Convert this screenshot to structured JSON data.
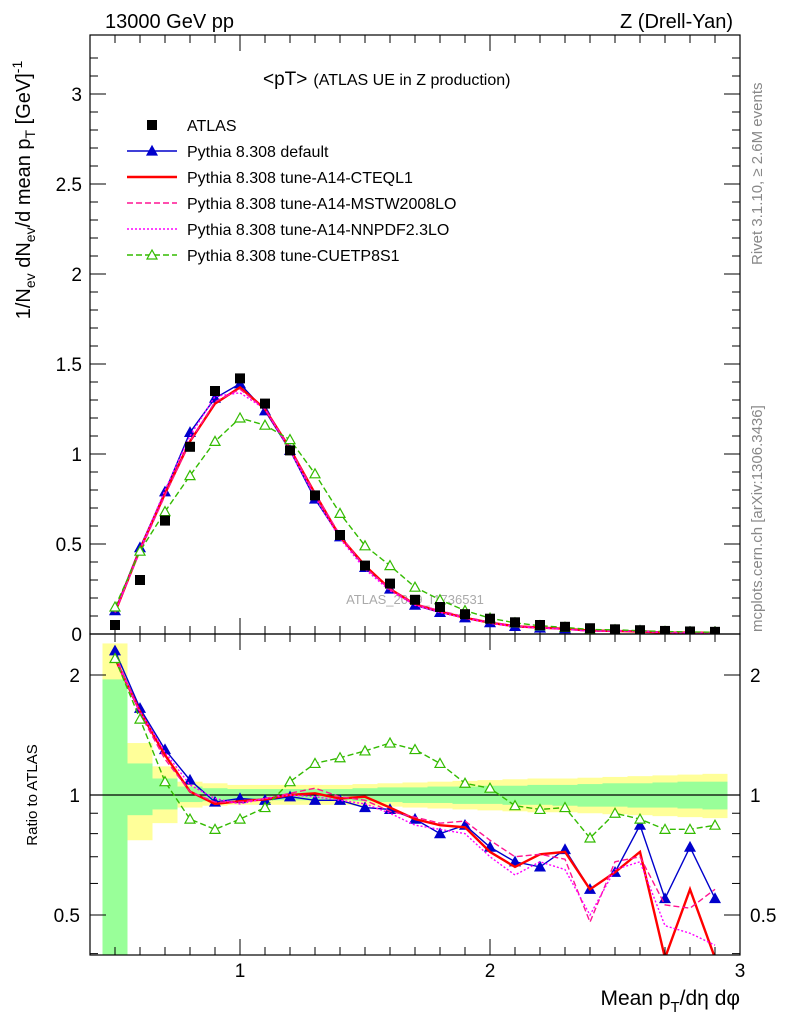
{
  "header": {
    "left": "13000 GeV pp",
    "right": "Z (Drell-Yan)"
  },
  "side_text": {
    "rivet": "Rivet 3.1.10, ≥ 2.6M events",
    "mcplots": "mcplots.cern.ch [arXiv:1306.3436]"
  },
  "watermark": "ATLAS_2019_I1736531",
  "chart_data": [
    {
      "type": "line",
      "title": "<pT>",
      "subtitle": "(ATLAS UE in Z production)",
      "ylabel": "1/N_ev dN_ev/d mean p_T [GeV]^-1",
      "ylim": [
        0,
        3.3
      ],
      "xlim": [
        0.4,
        3.0
      ],
      "yticks": [
        0,
        0.5,
        1,
        1.5,
        2,
        2.5,
        3
      ],
      "legend_position": "top-left",
      "x": [
        0.5,
        0.6,
        0.7,
        0.8,
        0.9,
        1.0,
        1.1,
        1.2,
        1.3,
        1.4,
        1.5,
        1.6,
        1.7,
        1.8,
        1.9,
        2.0,
        2.1,
        2.2,
        2.3,
        2.4,
        2.5,
        2.6,
        2.7,
        2.8,
        2.9
      ],
      "series": [
        {
          "name": "ATLAS",
          "color": "#000000",
          "marker": "square",
          "style": "points",
          "values": [
            0.05,
            0.3,
            0.63,
            1.04,
            1.35,
            1.42,
            1.28,
            1.02,
            0.77,
            0.55,
            0.38,
            0.28,
            0.19,
            0.15,
            0.11,
            0.085,
            0.065,
            0.05,
            0.04,
            0.032,
            0.026,
            0.021,
            0.017,
            0.014,
            0.012
          ]
        },
        {
          "name": "Pythia 8.308 default",
          "color": "#0000cc",
          "marker": "triangle-filled",
          "style": "solid",
          "values": [
            0.13,
            0.48,
            0.79,
            1.12,
            1.31,
            1.39,
            1.24,
            1.02,
            0.75,
            0.54,
            0.37,
            0.25,
            0.16,
            0.12,
            0.09,
            0.063,
            0.042,
            0.033,
            0.029,
            0.019,
            0.017,
            0.018,
            0.009,
            0.01,
            0.006
          ]
        },
        {
          "name": "Pythia 8.308 tune-A14-CTEQL1",
          "color": "#ff0000",
          "marker": "none",
          "style": "solid",
          "values": [
            0.12,
            0.47,
            0.78,
            1.07,
            1.28,
            1.37,
            1.25,
            1.03,
            0.78,
            0.54,
            0.38,
            0.25,
            0.165,
            0.125,
            0.09,
            0.063,
            0.043,
            0.036,
            0.029,
            0.019,
            0.017,
            0.014,
            0.007,
            0.008,
            0.006
          ]
        },
        {
          "name": "Pythia 8.308 tune-A14-MSTW2008LO",
          "color": "#ff1493",
          "marker": "none",
          "style": "dashed",
          "values": [
            0.12,
            0.46,
            0.77,
            1.07,
            1.29,
            1.36,
            1.25,
            1.03,
            0.78,
            0.55,
            0.37,
            0.25,
            0.165,
            0.13,
            0.095,
            0.066,
            0.046,
            0.036,
            0.028,
            0.015,
            0.018,
            0.015,
            0.009,
            0.007,
            0.007
          ]
        },
        {
          "name": "Pythia 8.308 tune-A14-NNPDF2.3LO",
          "color": "#ff00ff",
          "marker": "none",
          "style": "dotted",
          "values": [
            0.12,
            0.47,
            0.8,
            1.1,
            1.32,
            1.34,
            1.25,
            1.02,
            0.76,
            0.53,
            0.36,
            0.24,
            0.16,
            0.12,
            0.088,
            0.06,
            0.041,
            0.034,
            0.026,
            0.016,
            0.017,
            0.015,
            0.008,
            0.006,
            0.005
          ]
        },
        {
          "name": "Pythia 8.308 tune-CUETP8S1",
          "color": "#33bb00",
          "marker": "triangle-open",
          "style": "dashed",
          "values": [
            0.15,
            0.46,
            0.68,
            0.88,
            1.07,
            1.2,
            1.16,
            1.08,
            0.89,
            0.67,
            0.49,
            0.38,
            0.26,
            0.19,
            0.13,
            0.088,
            0.062,
            0.046,
            0.037,
            0.025,
            0.023,
            0.018,
            0.014,
            0.011,
            0.01
          ]
        }
      ]
    },
    {
      "type": "line",
      "ylabel": "Ratio to ATLAS",
      "xlabel": "Mean p_T/dη dφ",
      "ylim": [
        0.35,
        2.3
      ],
      "yscale": "log",
      "xlim": [
        0.4,
        3.0
      ],
      "yticks": [
        0.5,
        1,
        2
      ],
      "xticks": [
        1,
        2,
        3
      ],
      "reference_line": 1,
      "bands": {
        "x_edges": [
          0.45,
          0.55,
          0.65,
          0.75,
          0.85,
          0.95,
          1.05,
          1.15,
          1.25,
          1.35,
          1.45,
          1.55,
          1.65,
          1.75,
          1.85,
          1.95,
          2.05,
          2.15,
          2.25,
          2.35,
          2.45,
          2.55,
          2.65,
          2.75,
          2.85,
          2.95
        ],
        "yellow_upper": [
          2.4,
          1.35,
          1.18,
          1.08,
          1.07,
          1.06,
          1.06,
          1.06,
          1.06,
          1.06,
          1.065,
          1.07,
          1.075,
          1.08,
          1.085,
          1.09,
          1.095,
          1.1,
          1.1,
          1.105,
          1.11,
          1.115,
          1.12,
          1.125,
          1.13
        ],
        "yellow_lower": [
          0.3,
          0.77,
          0.85,
          0.93,
          0.94,
          0.945,
          0.945,
          0.945,
          0.945,
          0.945,
          0.94,
          0.935,
          0.93,
          0.925,
          0.92,
          0.915,
          0.91,
          0.905,
          0.905,
          0.9,
          0.895,
          0.89,
          0.885,
          0.88,
          0.875
        ],
        "green_upper": [
          1.95,
          1.2,
          1.1,
          1.05,
          1.04,
          1.035,
          1.035,
          1.035,
          1.035,
          1.035,
          1.04,
          1.045,
          1.045,
          1.05,
          1.05,
          1.055,
          1.055,
          1.06,
          1.06,
          1.065,
          1.07,
          1.07,
          1.075,
          1.08,
          1.08
        ],
        "green_lower": [
          0.3,
          0.89,
          0.92,
          0.96,
          0.965,
          0.97,
          0.97,
          0.97,
          0.97,
          0.97,
          0.965,
          0.96,
          0.955,
          0.955,
          0.95,
          0.95,
          0.945,
          0.945,
          0.94,
          0.935,
          0.935,
          0.93,
          0.93,
          0.925,
          0.92
        ]
      },
      "x": [
        0.5,
        0.6,
        0.7,
        0.8,
        0.9,
        1.0,
        1.1,
        1.2,
        1.3,
        1.4,
        1.5,
        1.6,
        1.7,
        1.8,
        1.9,
        2.0,
        2.1,
        2.2,
        2.3,
        2.4,
        2.5,
        2.6,
        2.7,
        2.8,
        2.9
      ],
      "series": [
        {
          "name": "Pythia 8.308 default",
          "color": "#0000cc",
          "marker": "triangle-filled",
          "style": "solid",
          "values": [
            2.3,
            1.65,
            1.3,
            1.09,
            0.96,
            0.98,
            0.97,
            0.99,
            0.97,
            0.97,
            0.93,
            0.92,
            0.87,
            0.8,
            0.84,
            0.74,
            0.68,
            0.66,
            0.73,
            0.58,
            0.64,
            0.84,
            0.55,
            0.74,
            0.55
          ]
        },
        {
          "name": "Pythia 8.308 tune-A14-CTEQL1",
          "color": "#ff0000",
          "marker": "none",
          "style": "solid",
          "values": [
            2.2,
            1.62,
            1.26,
            1.02,
            0.95,
            0.965,
            0.975,
            1.0,
            1.01,
            0.98,
            0.99,
            0.93,
            0.87,
            0.84,
            0.83,
            0.72,
            0.66,
            0.71,
            0.72,
            0.58,
            0.64,
            0.72,
            0.39,
            0.58,
            0.39
          ]
        },
        {
          "name": "Pythia 8.308 tune-A14-MSTW2008LO",
          "color": "#ff1493",
          "marker": "none",
          "style": "dashed",
          "values": [
            2.25,
            1.6,
            1.23,
            1.02,
            0.96,
            0.96,
            0.98,
            1.01,
            1.04,
            0.99,
            0.97,
            0.91,
            0.88,
            0.85,
            0.86,
            0.77,
            0.7,
            0.71,
            0.69,
            0.48,
            0.68,
            0.7,
            0.53,
            0.52,
            0.58
          ]
        },
        {
          "name": "Pythia 8.308 tune-A14-NNPDF2.3LO",
          "color": "#ff00ff",
          "marker": "none",
          "style": "dotted",
          "values": [
            2.2,
            1.62,
            1.28,
            1.06,
            0.98,
            0.95,
            0.98,
            1.0,
            0.99,
            0.97,
            0.95,
            0.9,
            0.84,
            0.82,
            0.8,
            0.7,
            0.63,
            0.68,
            0.65,
            0.5,
            0.65,
            0.68,
            0.47,
            0.45,
            0.42
          ]
        },
        {
          "name": "Pythia 8.308 tune-CUETP8S1",
          "color": "#33bb00",
          "marker": "triangle-open",
          "style": "dashed",
          "values": [
            2.2,
            1.55,
            1.08,
            0.87,
            0.82,
            0.87,
            0.93,
            1.08,
            1.2,
            1.24,
            1.29,
            1.35,
            1.3,
            1.2,
            1.07,
            1.04,
            0.94,
            0.92,
            0.93,
            0.78,
            0.9,
            0.87,
            0.82,
            0.82,
            0.84
          ]
        }
      ]
    }
  ]
}
